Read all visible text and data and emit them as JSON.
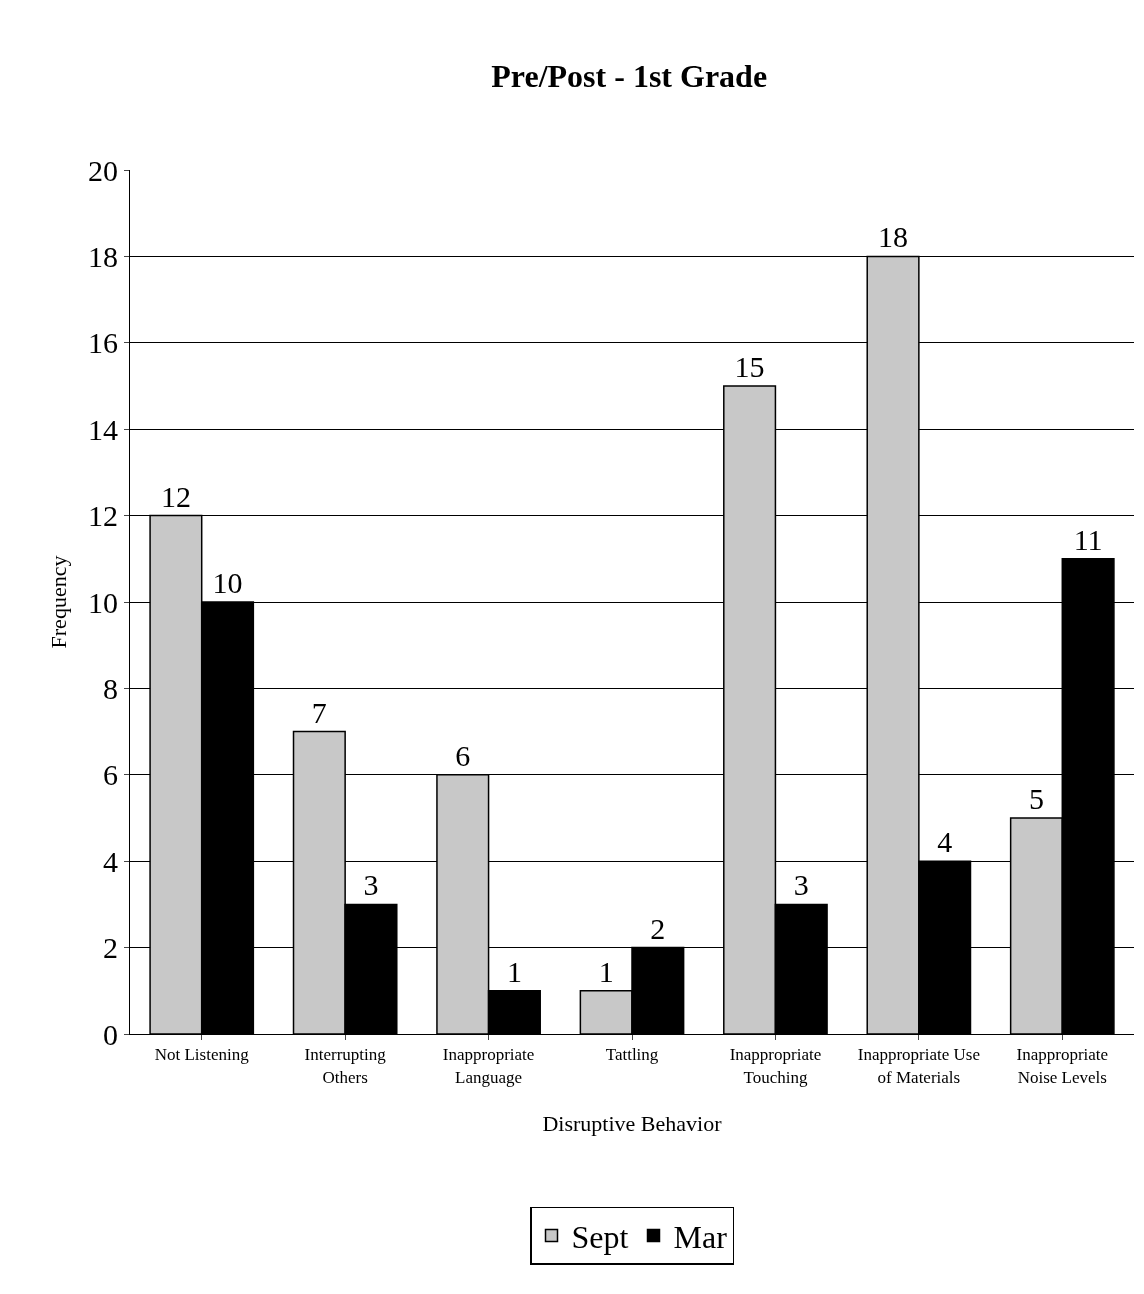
{
  "chart_data": {
    "type": "bar",
    "title": "Pre/Post - 1st Grade",
    "xlabel": "Disruptive Behavior",
    "ylabel": "Frequency",
    "categories": [
      "Not Listening",
      "Interrupting\nOthers",
      "Inappropriate\nLanguage",
      "Tattling",
      "Inappropriate\nTouching",
      "Inappropriate Use\nof Materials",
      "Inappropriate\nNoise Levels"
    ],
    "series": [
      {
        "name": "Sept",
        "color": "#c8c8c8",
        "values": [
          12,
          7,
          6,
          1,
          15,
          18,
          5
        ]
      },
      {
        "name": "Mar",
        "color": "#000000",
        "values": [
          10,
          3,
          1,
          2,
          3,
          4,
          11
        ]
      }
    ],
    "ylim": [
      0,
      20
    ],
    "yticks": [
      0,
      2,
      4,
      6,
      8,
      10,
      12,
      14,
      16,
      18,
      20
    ],
    "grid": "y",
    "legend": "bottom",
    "data_labels": true
  }
}
